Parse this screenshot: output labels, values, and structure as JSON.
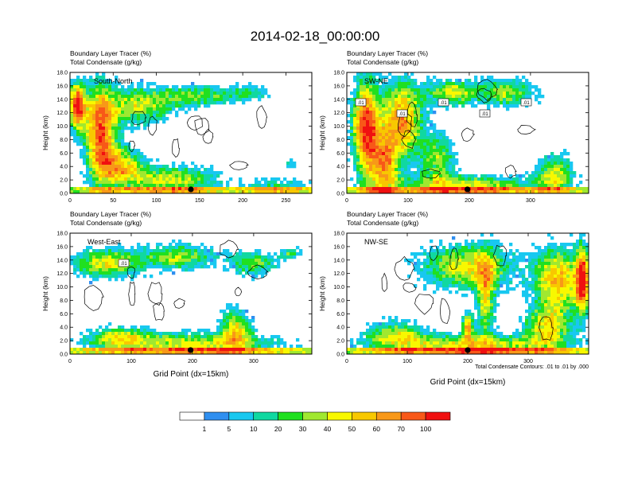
{
  "page_title": "2014-02-18_00:00:00",
  "contour_note": "Total Condensate Contours: .01 to .01 by .000",
  "palette": [
    "#ffffff",
    "#2f8ff0",
    "#18c8f0",
    "#10d8a0",
    "#20e020",
    "#a0e830",
    "#f8f800",
    "#f8c800",
    "#f89818",
    "#f85818",
    "#f01010"
  ],
  "colorbar": {
    "labels": [
      "1",
      "5",
      "10",
      "20",
      "30",
      "40",
      "50",
      "60",
      "70",
      "100"
    ]
  },
  "chart_data": [
    {
      "type": "heatmap",
      "label_top": "Boundary Layer Tracer   (%)",
      "label_bottom": "Total Condensate   (g/kg)",
      "section": "South-North",
      "xlabel": "",
      "ylabel": "Height (km)",
      "x_ticks": [
        "0",
        "50",
        "100",
        "150",
        "200",
        "250"
      ],
      "y_ticks": [
        "0.0",
        "2.0",
        "4.0",
        "6.0",
        "8.0",
        "10.0",
        "12.0",
        "14.0",
        "16.0",
        "18.0"
      ],
      "xlim": [
        0,
        280
      ],
      "ylim": [
        0,
        18
      ],
      "marker_x": 140,
      "contour_labels": []
    },
    {
      "type": "heatmap",
      "label_top": "Boundary Layer Tracer   (%)",
      "label_bottom": "Total Condensate   (g/kg)",
      "section": "SW-NE",
      "xlabel": "",
      "ylabel": "Height (km)",
      "x_ticks": [
        "0",
        "100",
        "200",
        "300"
      ],
      "y_ticks": [
        "0.0",
        "2.0",
        "4.0",
        "6.0",
        "8.0",
        "10.0",
        "12.0",
        "14.0",
        "16.0",
        "18.0"
      ],
      "xlim": [
        0,
        395
      ],
      "ylim": [
        0,
        18
      ],
      "marker_x": 197,
      "contour_labels": [
        ".01",
        ".01",
        ".01",
        ".01",
        ".01"
      ]
    },
    {
      "type": "heatmap",
      "label_top": "Boundary Layer Tracer   (%)",
      "label_bottom": "Total Condensate   (g/kg)",
      "section": "West-East",
      "xlabel": "Grid Point (dx=15km)",
      "ylabel": "Height (km)",
      "x_ticks": [
        "0",
        "100",
        "200",
        "300"
      ],
      "y_ticks": [
        "0.0",
        "2.0",
        "4.0",
        "6.0",
        "8.0",
        "10.0",
        "12.0",
        "14.0",
        "16.0",
        "18.0"
      ],
      "xlim": [
        0,
        395
      ],
      "ylim": [
        0,
        18
      ],
      "marker_x": 197,
      "contour_labels": [
        ".01"
      ]
    },
    {
      "type": "heatmap",
      "label_top": "Boundary Layer Tracer   (%)",
      "label_bottom": "Total Condensate   (g/kg)",
      "section": "NW-SE",
      "xlabel": "Grid Point (dx=15km)",
      "ylabel": "Height (km)",
      "x_ticks": [
        "0",
        "100",
        "200",
        "300"
      ],
      "y_ticks": [
        "0.0",
        "2.0",
        "4.0",
        "6.0",
        "8.0",
        "10.0",
        "12.0",
        "14.0",
        "16.0",
        "18.0"
      ],
      "xlim": [
        0,
        400
      ],
      "ylim": [
        0,
        18
      ],
      "marker_x": 200,
      "contour_labels": []
    }
  ]
}
